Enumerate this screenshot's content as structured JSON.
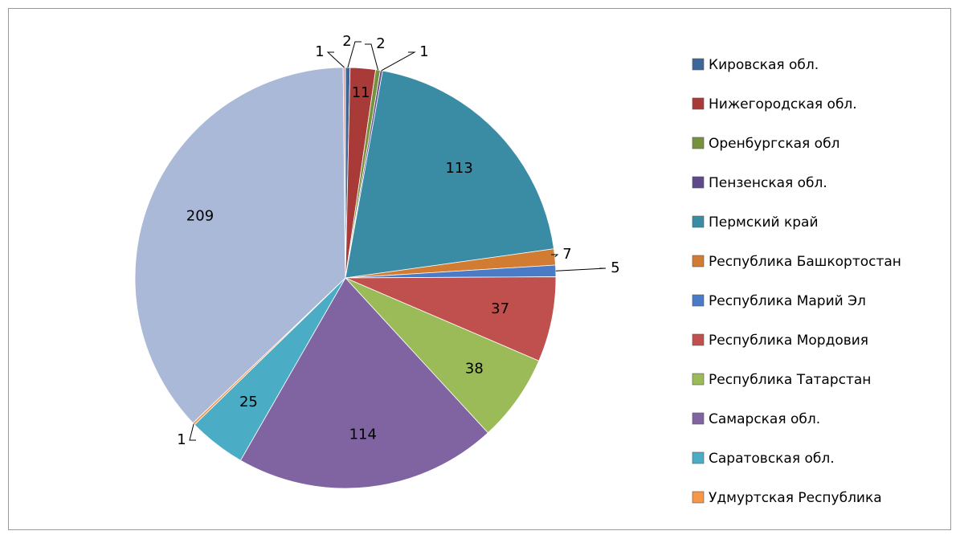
{
  "chart_data": {
    "type": "pie",
    "categories": [
      "Кировская обл.",
      "Нижегородская обл.",
      "Оренбургская обл",
      "Пензенская обл.",
      "Пермский край",
      "Республика Башкортостан",
      "Республика Марий Эл",
      "Республика Мордовия",
      "Республика Татарстан",
      "Самарская обл.",
      "Саратовская обл.",
      "Удмуртская Республика",
      null,
      null
    ],
    "values": [
      2,
      11,
      2,
      1,
      113,
      7,
      5,
      37,
      38,
      114,
      25,
      1,
      209,
      1
    ],
    "colors": [
      "#3f6699",
      "#a83a37",
      "#76923c",
      "#5e4a8a",
      "#3a8ca4",
      "#d27b32",
      "#4a7bc6",
      "#c0504d",
      "#9bbb59",
      "#8064a2",
      "#4bacc6",
      "#f79646",
      "#aab9d7",
      "#d8a9a7"
    ],
    "legend": "right"
  }
}
